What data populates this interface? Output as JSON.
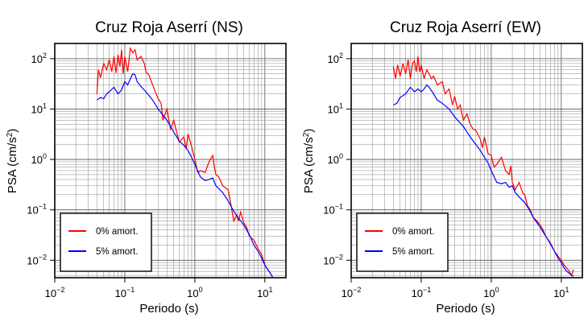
{
  "chart_data": [
    {
      "type": "line",
      "title": "Cruz Roja Aserrí (NS)",
      "xlabel": "Periodo (s)",
      "ylabel": "PSA (cm/s²)",
      "xscale": "log",
      "yscale": "log",
      "xlim": [
        0.01,
        20
      ],
      "ylim": [
        0.0045,
        200
      ],
      "x_ticks": [
        {
          "base": "10",
          "exp": "−2"
        },
        {
          "base": "10",
          "exp": "−1"
        },
        {
          "base": "10",
          "exp": "0"
        },
        {
          "base": "10",
          "exp": "1"
        }
      ],
      "y_ticks": [
        {
          "base": "10",
          "exp": "−2"
        },
        {
          "base": "10",
          "exp": "−1"
        },
        {
          "base": "10",
          "exp": "0"
        },
        {
          "base": "10",
          "exp": "1"
        },
        {
          "base": "10",
          "exp": "2"
        }
      ],
      "grid": true,
      "legend_position": "bottom-left",
      "series": [
        {
          "name": "0% amort.",
          "color": "#ff0000",
          "points": [
            [
              0.04,
              20
            ],
            [
              0.042,
              60
            ],
            [
              0.045,
              42
            ],
            [
              0.05,
              80
            ],
            [
              0.055,
              60
            ],
            [
              0.06,
              95
            ],
            [
              0.065,
              55
            ],
            [
              0.07,
              110
            ],
            [
              0.075,
              52
            ],
            [
              0.08,
              120
            ],
            [
              0.085,
              70
            ],
            [
              0.09,
              150
            ],
            [
              0.095,
              50
            ],
            [
              0.1,
              110
            ],
            [
              0.11,
              55
            ],
            [
              0.12,
              160
            ],
            [
              0.13,
              130
            ],
            [
              0.14,
              150
            ],
            [
              0.15,
              95
            ],
            [
              0.17,
              110
            ],
            [
              0.19,
              80
            ],
            [
              0.2,
              55
            ],
            [
              0.22,
              48
            ],
            [
              0.25,
              30
            ],
            [
              0.28,
              20
            ],
            [
              0.3,
              16
            ],
            [
              0.33,
              13
            ],
            [
              0.35,
              6
            ],
            [
              0.4,
              10
            ],
            [
              0.45,
              4
            ],
            [
              0.5,
              6
            ],
            [
              0.55,
              3.5
            ],
            [
              0.6,
              2.2
            ],
            [
              0.7,
              2.8
            ],
            [
              0.75,
              1.6
            ],
            [
              0.8,
              3.2
            ],
            [
              0.9,
              1.8
            ],
            [
              1,
              1
            ],
            [
              1.1,
              0.55
            ],
            [
              1.2,
              0.6
            ],
            [
              1.4,
              0.55
            ],
            [
              1.6,
              0.9
            ],
            [
              1.8,
              1.2
            ],
            [
              1.9,
              0.7
            ],
            [
              2,
              0.5
            ],
            [
              2.2,
              0.45
            ],
            [
              2.5,
              0.3
            ],
            [
              3,
              0.25
            ],
            [
              3.3,
              0.12
            ],
            [
              3.6,
              0.06
            ],
            [
              4,
              0.08
            ],
            [
              4.2,
              0.06
            ],
            [
              4.5,
              0.09
            ],
            [
              5,
              0.055
            ],
            [
              5.5,
              0.045
            ],
            [
              6,
              0.03
            ],
            [
              7,
              0.025
            ],
            [
              8,
              0.017
            ],
            [
              9,
              0.013
            ],
            [
              10,
              0.008
            ],
            [
              11,
              0.0065
            ],
            [
              12,
              0.0055
            ],
            [
              13,
              0.0045
            ]
          ]
        },
        {
          "name": "5% amort.",
          "color": "#0000ff",
          "points": [
            [
              0.04,
              15
            ],
            [
              0.045,
              17
            ],
            [
              0.05,
              16
            ],
            [
              0.055,
              20
            ],
            [
              0.06,
              22
            ],
            [
              0.07,
              27
            ],
            [
              0.08,
              20
            ],
            [
              0.09,
              24
            ],
            [
              0.1,
              35
            ],
            [
              0.11,
              30
            ],
            [
              0.12,
              40
            ],
            [
              0.13,
              50
            ],
            [
              0.14,
              48
            ],
            [
              0.15,
              35
            ],
            [
              0.17,
              28
            ],
            [
              0.2,
              22
            ],
            [
              0.25,
              15
            ],
            [
              0.3,
              10
            ],
            [
              0.4,
              6
            ],
            [
              0.5,
              3.5
            ],
            [
              0.6,
              2.3
            ],
            [
              0.7,
              1.9
            ],
            [
              0.8,
              1.5
            ],
            [
              0.9,
              1.1
            ],
            [
              1,
              0.8
            ],
            [
              1.2,
              0.45
            ],
            [
              1.4,
              0.38
            ],
            [
              1.6,
              0.4
            ],
            [
              1.8,
              0.43
            ],
            [
              2,
              0.3
            ],
            [
              2.5,
              0.22
            ],
            [
              3,
              0.15
            ],
            [
              3.5,
              0.1
            ],
            [
              4,
              0.075
            ],
            [
              5,
              0.05
            ],
            [
              6,
              0.032
            ],
            [
              7,
              0.02
            ],
            [
              8,
              0.015
            ],
            [
              9,
              0.011
            ],
            [
              10,
              0.008
            ],
            [
              11,
              0.0065
            ],
            [
              12,
              0.0055
            ],
            [
              13,
              0.0045
            ]
          ]
        }
      ]
    },
    {
      "type": "line",
      "title": "Cruz Roja Aserrí (EW)",
      "xlabel": "Periodo (s)",
      "ylabel": "PSA (cm/s²)",
      "xscale": "log",
      "yscale": "log",
      "xlim": [
        0.01,
        20
      ],
      "ylim": [
        0.0045,
        200
      ],
      "x_ticks": [
        {
          "base": "10",
          "exp": "−2"
        },
        {
          "base": "10",
          "exp": "−1"
        },
        {
          "base": "10",
          "exp": "0"
        },
        {
          "base": "10",
          "exp": "1"
        }
      ],
      "y_ticks": [
        {
          "base": "10",
          "exp": "−2"
        },
        {
          "base": "10",
          "exp": "−1"
        },
        {
          "base": "10",
          "exp": "0"
        },
        {
          "base": "10",
          "exp": "1"
        },
        {
          "base": "10",
          "exp": "2"
        }
      ],
      "grid": true,
      "legend_position": "bottom-left",
      "series": [
        {
          "name": "0% amort.",
          "color": "#ff0000",
          "points": [
            [
              0.04,
              70
            ],
            [
              0.043,
              40
            ],
            [
              0.046,
              75
            ],
            [
              0.05,
              45
            ],
            [
              0.055,
              80
            ],
            [
              0.06,
              50
            ],
            [
              0.065,
              95
            ],
            [
              0.07,
              40
            ],
            [
              0.075,
              80
            ],
            [
              0.08,
              90
            ],
            [
              0.085,
              55
            ],
            [
              0.09,
              110
            ],
            [
              0.095,
              55
            ],
            [
              0.1,
              75
            ],
            [
              0.11,
              40
            ],
            [
              0.12,
              60
            ],
            [
              0.13,
              50
            ],
            [
              0.14,
              40
            ],
            [
              0.15,
              45
            ],
            [
              0.17,
              30
            ],
            [
              0.2,
              35
            ],
            [
              0.22,
              20
            ],
            [
              0.25,
              25
            ],
            [
              0.28,
              12
            ],
            [
              0.3,
              18
            ],
            [
              0.33,
              10
            ],
            [
              0.36,
              12
            ],
            [
              0.4,
              6
            ],
            [
              0.45,
              8
            ],
            [
              0.5,
              5
            ],
            [
              0.55,
              4
            ],
            [
              0.6,
              3.8
            ],
            [
              0.7,
              2.5
            ],
            [
              0.75,
              1.7
            ],
            [
              0.8,
              2.8
            ],
            [
              0.9,
              1.3
            ],
            [
              1,
              1.2
            ],
            [
              1.1,
              0.7
            ],
            [
              1.2,
              0.8
            ],
            [
              1.4,
              1.1
            ],
            [
              1.6,
              0.6
            ],
            [
              1.8,
              0.5
            ],
            [
              1.9,
              0.75
            ],
            [
              2,
              0.35
            ],
            [
              2.2,
              0.25
            ],
            [
              2.5,
              0.35
            ],
            [
              2.8,
              0.22
            ],
            [
              3,
              0.2
            ],
            [
              3.3,
              0.12
            ],
            [
              3.6,
              0.1
            ],
            [
              4,
              0.07
            ],
            [
              4.5,
              0.06
            ],
            [
              5,
              0.05
            ],
            [
              5.5,
              0.04
            ],
            [
              6,
              0.03
            ],
            [
              7,
              0.022
            ],
            [
              8,
              0.015
            ],
            [
              9,
              0.012
            ],
            [
              10,
              0.01
            ],
            [
              11,
              0.008
            ],
            [
              12,
              0.007
            ],
            [
              13,
              0.006
            ],
            [
              14,
              0.005
            ],
            [
              15,
              0.0065
            ]
          ]
        },
        {
          "name": "5% amort.",
          "color": "#0000ff",
          "points": [
            [
              0.04,
              12
            ],
            [
              0.045,
              13
            ],
            [
              0.05,
              17
            ],
            [
              0.06,
              20
            ],
            [
              0.07,
              27
            ],
            [
              0.08,
              22
            ],
            [
              0.09,
              25
            ],
            [
              0.1,
              22
            ],
            [
              0.11,
              25
            ],
            [
              0.12,
              30
            ],
            [
              0.13,
              27
            ],
            [
              0.15,
              20
            ],
            [
              0.17,
              15
            ],
            [
              0.2,
              13
            ],
            [
              0.25,
              10
            ],
            [
              0.3,
              7
            ],
            [
              0.4,
              4.5
            ],
            [
              0.5,
              2.8
            ],
            [
              0.6,
              2
            ],
            [
              0.7,
              1.5
            ],
            [
              0.8,
              1.1
            ],
            [
              0.9,
              0.85
            ],
            [
              1,
              0.6
            ],
            [
              1.2,
              0.35
            ],
            [
              1.4,
              0.33
            ],
            [
              1.6,
              0.35
            ],
            [
              1.8,
              0.28
            ],
            [
              2,
              0.3
            ],
            [
              2.2,
              0.22
            ],
            [
              2.5,
              0.18
            ],
            [
              3,
              0.14
            ],
            [
              3.5,
              0.1
            ],
            [
              4,
              0.07
            ],
            [
              5,
              0.045
            ],
            [
              6,
              0.03
            ],
            [
              7,
              0.021
            ],
            [
              8,
              0.015
            ],
            [
              9,
              0.011
            ],
            [
              10,
              0.009
            ],
            [
              11,
              0.007
            ],
            [
              12,
              0.006
            ],
            [
              13,
              0.0055
            ],
            [
              14,
              0.005
            ],
            [
              15,
              0.0048
            ]
          ]
        }
      ]
    }
  ]
}
